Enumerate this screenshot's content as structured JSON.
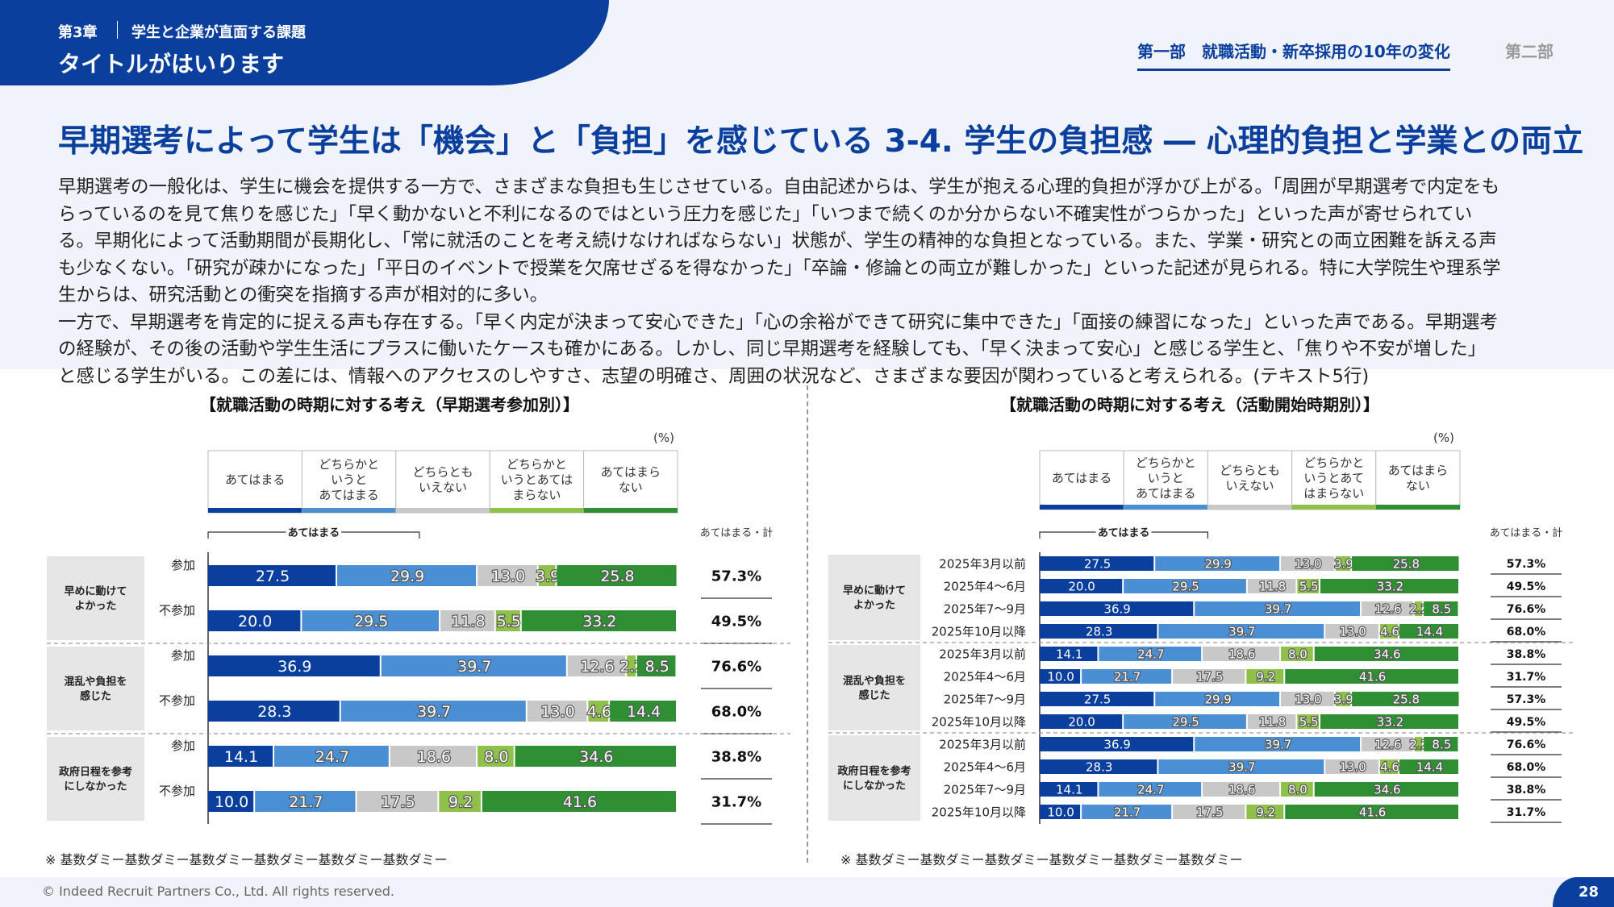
{
  "header": {
    "chapter": "第3章",
    "chapter_subtitle": "学生と企業が直面する課題",
    "title": "タイトルがはいります",
    "nav_active": "第一部　就職活動・新卒採用の10年の変化",
    "nav_inactive": "第二部"
  },
  "main": {
    "title": "早期選考によって学生は「機会」と「負担」を感じている 3-4. 学生の負担感 ― 心理的負担と学業との両立",
    "paragraph1": "早期選考の一般化は、学生に機会を提供する一方で、さまざまな負担も生じさせている。自由記述からは、学生が抱える心理的負担が浮かび上がる。「周囲が早期選考で内定をもらっているのを見て焦りを感じた」「早く動かないと不利になるのではという圧力を感じた」「いつまで続くのか分からない不確実性がつらかった」といった声が寄せられている。早期化によって活動期間が長期化し、「常に就活のことを考え続けなければならない」状態が、学生の精神的な負担となっている。また、学業・研究との両立困難を訴える声も少なくない。「研究が疎かになった」「平日のイベントで授業を欠席せざるを得なかった」「卒論・修論との両立が難しかった」といった記述が見られる。特に大学院生や理系学生からは、研究活動との衝突を指摘する声が相対的に多い。",
    "paragraph2": "一方で、早期選考を肯定的に捉える声も存在する。「早く内定が決まって安心できた」「心の余裕ができて研究に集中できた」「面接の練習になった」といった声である。早期選考の経験が、その後の活動や学生生活にプラスに働いたケースも確かにある。しかし、同じ早期選考を経験しても、「早く決まって安心」と感じる学生と、「焦りや不安が増した」と感じる学生がいる。この差には、情報へのアクセスのしやすさ、志望の明確さ、周囲の状況など、さまざまな要因が関わっていると考えられる。(テキスト5行)"
  },
  "colors": {
    "c1": "#0b3f9e",
    "c2": "#4a8fd3",
    "c3": "#c8c8c8",
    "c4": "#8ec04a",
    "c5": "#2e9032",
    "group_bg": "#e6e6e6"
  },
  "chart_data": [
    {
      "type": "bar",
      "stacked": true,
      "orientation": "horizontal",
      "title": "【就職活動の時期に対する考え（早期選考参加別）】",
      "unit_label": "(%)",
      "legend": [
        "あてはまる",
        "どちらかというとあてはまる",
        "どちらともいえない",
        "どちらかというとあてはまらない",
        "あてはまらない"
      ],
      "legend_display": [
        [
          "あてはまる"
        ],
        [
          "どちらかと",
          "いうと",
          "あてはまる"
        ],
        [
          "どちらとも",
          "いえない"
        ],
        [
          "どちらかと",
          "いうとあては",
          "まらない"
        ],
        [
          "あてはまら",
          "ない"
        ]
      ],
      "bracket_label": "あてはまる",
      "total_header": "あてはまる・計",
      "groups": [
        {
          "label": [
            "早めに動けて",
            "よかった"
          ],
          "rows": [
            {
              "label": "参加",
              "values": [
                27.5,
                29.9,
                13.0,
                3.9,
                25.8
              ],
              "total": "57.3%"
            },
            {
              "label": "不参加",
              "values": [
                20.0,
                29.5,
                11.8,
                5.5,
                33.2
              ],
              "total": "49.5%"
            }
          ]
        },
        {
          "label": [
            "混乱や負担を",
            "感じた"
          ],
          "rows": [
            {
              "label": "参加",
              "values": [
                36.9,
                39.7,
                12.6,
                2.2,
                8.5
              ],
              "total": "76.6%"
            },
            {
              "label": "不参加",
              "values": [
                28.3,
                39.7,
                13.0,
                4.6,
                14.4
              ],
              "total": "68.0%"
            }
          ]
        },
        {
          "label": [
            "政府日程を参考",
            "にしなかった"
          ],
          "rows": [
            {
              "label": "参加",
              "values": [
                14.1,
                24.7,
                18.6,
                8.0,
                34.6
              ],
              "total": "38.8%"
            },
            {
              "label": "不参加",
              "values": [
                10.0,
                21.7,
                17.5,
                9.2,
                41.6
              ],
              "total": "31.7%"
            }
          ]
        }
      ],
      "note": "※ 基数ダミー基数ダミー基数ダミー基数ダミー基数ダミー基数ダミー"
    },
    {
      "type": "bar",
      "stacked": true,
      "orientation": "horizontal",
      "title": "【就職活動の時期に対する考え（活動開始時期別）】",
      "unit_label": "(%)",
      "legend": [
        "あてはまる",
        "どちらかというとあてはまる",
        "どちらともいえない",
        "どちらかというとあてはまらない",
        "あてはまらない"
      ],
      "legend_display": [
        [
          "あてはまる"
        ],
        [
          "どちらかと",
          "いうと",
          "あてはまる"
        ],
        [
          "どちらとも",
          "いえない"
        ],
        [
          "どちらかと",
          "いうとあて",
          "はまらない"
        ],
        [
          "あてはまら",
          "ない"
        ]
      ],
      "bracket_label": "あてはまる",
      "total_header": "あてはまる・計",
      "groups": [
        {
          "label": [
            "早めに動けて",
            "よかった"
          ],
          "rows": [
            {
              "label": "2025年3月以前",
              "values": [
                27.5,
                29.9,
                13.0,
                3.9,
                25.8
              ],
              "total": "57.3%"
            },
            {
              "label": "2025年4～6月",
              "values": [
                20.0,
                29.5,
                11.8,
                5.5,
                33.2
              ],
              "total": "49.5%"
            },
            {
              "label": "2025年7～9月",
              "values": [
                36.9,
                39.7,
                12.6,
                2.2,
                8.5
              ],
              "total": "76.6%"
            },
            {
              "label": "2025年10月以降",
              "values": [
                28.3,
                39.7,
                13.0,
                4.6,
                14.4
              ],
              "total": "68.0%"
            }
          ]
        },
        {
          "label": [
            "混乱や負担を",
            "感じた"
          ],
          "rows": [
            {
              "label": "2025年3月以前",
              "values": [
                14.1,
                24.7,
                18.6,
                8.0,
                34.6
              ],
              "total": "38.8%"
            },
            {
              "label": "2025年4～6月",
              "values": [
                10.0,
                21.7,
                17.5,
                9.2,
                41.6
              ],
              "total": "31.7%"
            },
            {
              "label": "2025年7～9月",
              "values": [
                27.5,
                29.9,
                13.0,
                3.9,
                25.8
              ],
              "total": "57.3%"
            },
            {
              "label": "2025年10月以降",
              "values": [
                20.0,
                29.5,
                11.8,
                5.5,
                33.2
              ],
              "total": "49.5%"
            }
          ]
        },
        {
          "label": [
            "政府日程を参考",
            "にしなかった"
          ],
          "rows": [
            {
              "label": "2025年3月以前",
              "values": [
                36.9,
                39.7,
                12.6,
                2.2,
                8.5
              ],
              "total": "76.6%"
            },
            {
              "label": "2025年4～6月",
              "values": [
                28.3,
                39.7,
                13.0,
                4.6,
                14.4
              ],
              "total": "68.0%"
            },
            {
              "label": "2025年7～9月",
              "values": [
                14.1,
                24.7,
                18.6,
                8.0,
                34.6
              ],
              "total": "38.8%"
            },
            {
              "label": "2025年10月以降",
              "values": [
                10.0,
                21.7,
                17.5,
                9.2,
                41.6
              ],
              "total": "31.7%"
            }
          ]
        }
      ],
      "note": "※ 基数ダミー基数ダミー基数ダミー基数ダミー基数ダミー基数ダミー"
    }
  ],
  "footer": {
    "copyright": "© Indeed Recruit Partners Co., Ltd. All rights reserved.",
    "page": "28"
  }
}
